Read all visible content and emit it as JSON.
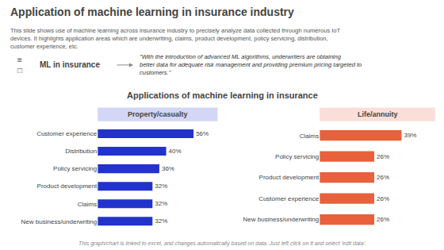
{
  "title": "Application of machine learning in insurance industry",
  "subtitle": "This slide shows use of machine learning across insurance industry to precisely analyze data collected through numerous IoT devices. It highlights application areas which are underwriting, claims, product development, policy servicing, distribution, customer experience, etc.",
  "annotations": [
    "ML in insurance",
    "\"With the introduction of advanced ML algorithms, underwriters are obtaining better data for adequate risk\nmanagement and providing premium pricing targeted to customers.\"",
    "Applications of machine learning in insurance",
    "This graph/chart is linked to excel, and changes automatically based on data. Just left click on it and select 'edit data'.",
    "≡\n□"
  ],
  "chart_data": [
    {
      "type": "bar",
      "orientation": "horizontal",
      "title": "Property/casualty",
      "categories": [
        "Customer experience",
        "Distribution",
        "Policy servicing",
        "Product development",
        "Claims",
        "New business/underwriting"
      ],
      "values": [
        56,
        40,
        36,
        32,
        32,
        32
      ],
      "value_labels": [
        "56%",
        "40%",
        "36%",
        "32%",
        "32%",
        "32%"
      ],
      "data_labels": true,
      "color": "#2233CC",
      "xlim": [
        0,
        70
      ],
      "grid": false,
      "tick_labels": "y"
    },
    {
      "type": "bar",
      "orientation": "horizontal",
      "title": "Life/annuity",
      "categories": [
        "Claims",
        "Policy servicing",
        "Product development",
        "Customer experience",
        "New business/underwriting"
      ],
      "values": [
        39,
        26,
        26,
        26,
        26
      ],
      "value_labels": [
        "39%",
        "26%",
        "26%",
        "26%",
        "26%"
      ],
      "data_labels": true,
      "color": "#E8603C",
      "xlim": [
        0,
        55
      ],
      "grid": false,
      "tick_labels": "y"
    }
  ]
}
